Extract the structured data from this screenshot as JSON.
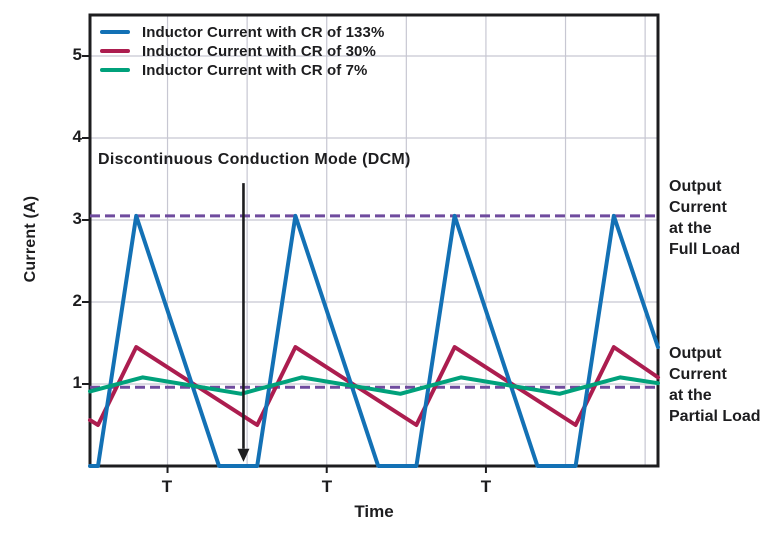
{
  "chart_data": {
    "type": "line",
    "title": "",
    "xlabel": "Time",
    "ylabel": "Current (A)",
    "x_unit": "switching periods (T)",
    "x_domain_periods": [
      0,
      3.568
    ],
    "ylim": [
      0,
      5.5
    ],
    "y_ticks": [
      1,
      2,
      3,
      4,
      5
    ],
    "y_tick_labels": {
      "t5": "5",
      "t4": "4",
      "t3": "3",
      "t2": "2",
      "t1": "1"
    },
    "x_tick_label": "T",
    "x_tick_periods": [
      0.487,
      1.487,
      2.487
    ],
    "v_gridline_periods": [
      0.487,
      0.987,
      1.487,
      1.987,
      2.487,
      2.987,
      3.487
    ],
    "grid": true,
    "legend_position": "top-left inside plot",
    "series": [
      {
        "name": "Inductor Current with CR of 133%",
        "color": "#1371B5",
        "points": [
          [
            0,
            0
          ],
          [
            0.05,
            0
          ],
          [
            0.29,
            3.05
          ],
          [
            0.81,
            0
          ],
          [
            1.05,
            0
          ],
          [
            1.29,
            3.05
          ],
          [
            1.81,
            0
          ],
          [
            2.05,
            0
          ],
          [
            2.29,
            3.05
          ],
          [
            2.81,
            0
          ],
          [
            3.05,
            0
          ],
          [
            3.29,
            3.05
          ],
          [
            3.568,
            1.45
          ]
        ]
      },
      {
        "name": "Inductor Current with CR of 30%",
        "color": "#AC1D4F",
        "points": [
          [
            0,
            0.56
          ],
          [
            0.05,
            0.5
          ],
          [
            0.29,
            1.45
          ],
          [
            1.05,
            0.5
          ],
          [
            1.29,
            1.45
          ],
          [
            2.05,
            0.5
          ],
          [
            2.29,
            1.45
          ],
          [
            3.05,
            0.5
          ],
          [
            3.29,
            1.45
          ],
          [
            3.568,
            1.08
          ]
        ]
      },
      {
        "name": "Inductor Current with CR of 7%",
        "color": "#00A17B",
        "points": [
          [
            0,
            0.91
          ],
          [
            0.33,
            1.08
          ],
          [
            0.95,
            0.88
          ],
          [
            1.33,
            1.08
          ],
          [
            1.95,
            0.88
          ],
          [
            2.33,
            1.08
          ],
          [
            2.95,
            0.88
          ],
          [
            3.33,
            1.08
          ],
          [
            3.568,
            1.01
          ]
        ]
      }
    ],
    "reference_lines": [
      {
        "label": "Output Current at the Full Load",
        "value": 3.05,
        "color": "#6F4B9E",
        "style": "dashed"
      },
      {
        "label": "Output Current at the Partial Load",
        "value": 0.96,
        "color": "#6F4B9E",
        "style": "dashed"
      }
    ],
    "annotation": {
      "text": "Discontinuous Conduction Mode (DCM)",
      "arrow_t": 0.964,
      "arrow_from_value": 3.45,
      "arrow_to_value": 0.05
    }
  },
  "legend": {
    "items": [
      {
        "label": "Inductor Current with CR of 133%",
        "color": "#1371B5"
      },
      {
        "label": "Inductor Current with CR of 30%",
        "color": "#AC1D4F"
      },
      {
        "label": "Inductor Current with CR of 7%",
        "color": "#00A17B"
      }
    ]
  },
  "reference_labels": {
    "full_load": {
      "lines": [
        "Output",
        "Current",
        "at the",
        "Full Load"
      ]
    },
    "partial_load": {
      "lines": [
        "Output",
        "Current",
        "at the",
        "Partial Load"
      ]
    }
  },
  "axis_labels": {
    "x": "Time",
    "y": "Current (A)"
  },
  "colors": {
    "axis": "#1d1d1f",
    "gridline": "#C7C7D2",
    "background": "#ffffff",
    "blue": "#1371B5",
    "crimson": "#AC1D4F",
    "green": "#00A17B",
    "purple_dashed": "#6F4B9E"
  }
}
